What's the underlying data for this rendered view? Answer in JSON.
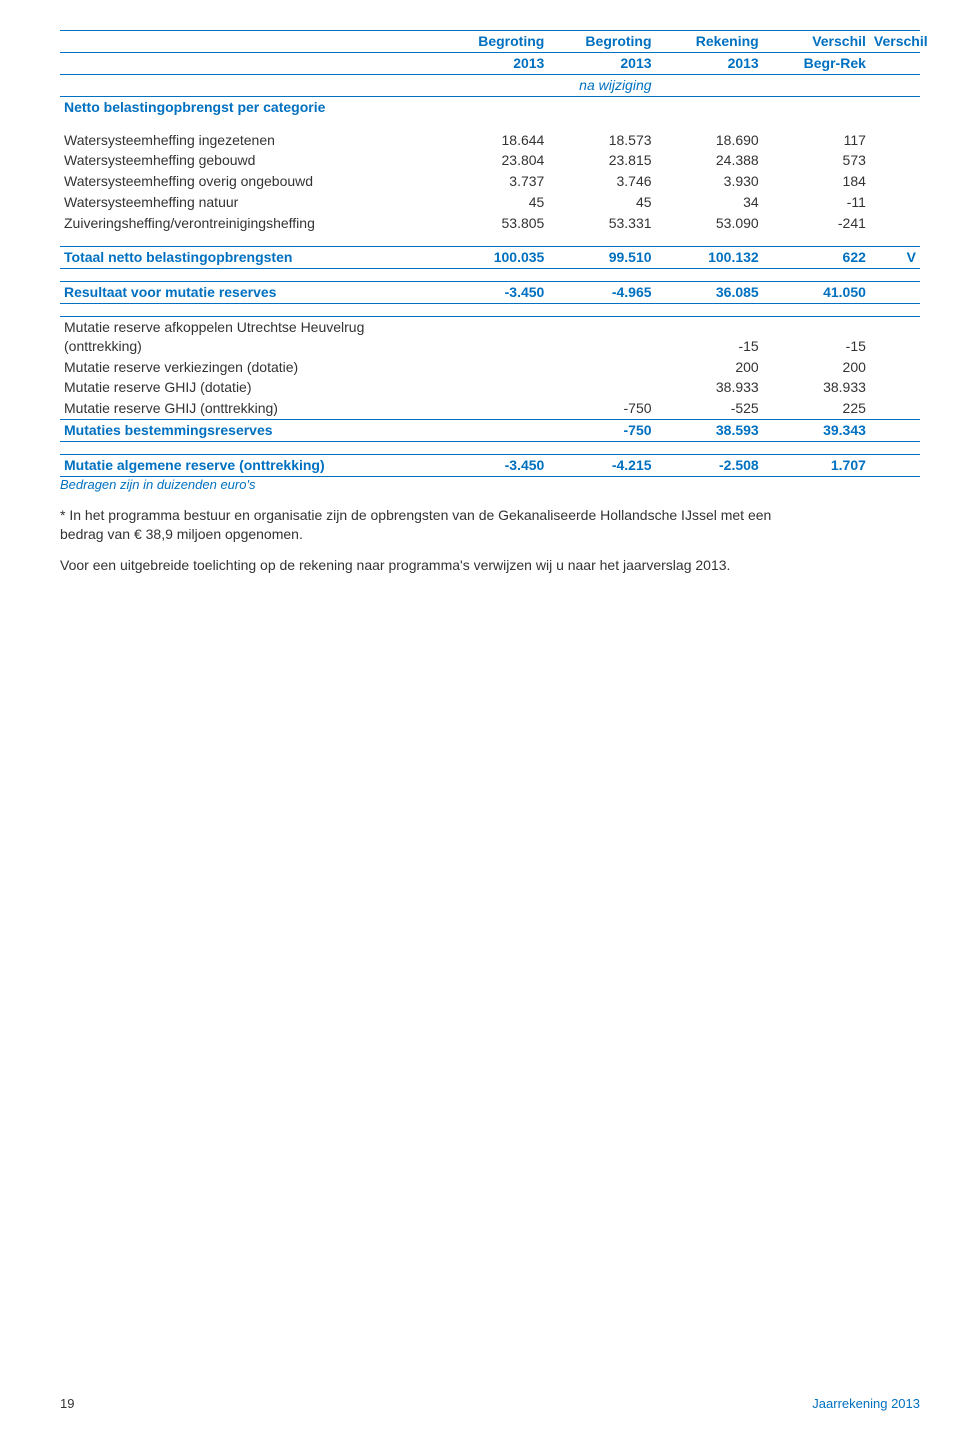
{
  "colors": {
    "accent": "#0070c0",
    "text": "#333333",
    "line": "#0070c0",
    "background": "#ffffff"
  },
  "typography": {
    "font_family": "Arial",
    "base_size_pt": 10.5,
    "bold_weight": 700
  },
  "header": {
    "row1": [
      "",
      "Begroting",
      "Begroting",
      "Rekening",
      "Verschil",
      "Verschil"
    ],
    "row2": [
      "",
      "2013",
      "2013",
      "2013",
      "Begr-Rek",
      ""
    ],
    "row3_note": "na wijziging"
  },
  "section1": {
    "title": "Netto belastingopbrengst per categorie",
    "rows": [
      {
        "label": "Watersysteemheffing ingezetenen",
        "c1": "18.644",
        "c2": "18.573",
        "c3": "18.690",
        "c4": "117"
      },
      {
        "label": "Watersysteemheffing gebouwd",
        "c1": "23.804",
        "c2": "23.815",
        "c3": "24.388",
        "c4": "573"
      },
      {
        "label": "Watersysteemheffing overig ongebouwd",
        "c1": "3.737",
        "c2": "3.746",
        "c3": "3.930",
        "c4": "184"
      },
      {
        "label": "Watersysteemheffing natuur",
        "c1": "45",
        "c2": "45",
        "c3": "34",
        "c4": "-11"
      },
      {
        "label": "Zuiveringsheffing/verontreinigingsheffing",
        "c1": "53.805",
        "c2": "53.331",
        "c3": "53.090",
        "c4": "-241"
      }
    ]
  },
  "total1": {
    "label": "Totaal netto belastingopbrengsten",
    "c1": "100.035",
    "c2": "99.510",
    "c3": "100.132",
    "c4": "622",
    "c5": "V"
  },
  "result_before": {
    "label": "Resultaat voor mutatie reserves",
    "c1": "-3.450",
    "c2": "-4.965",
    "c3": "36.085",
    "c4": "41.050"
  },
  "mutations": {
    "rows": [
      {
        "label": "Mutatie reserve afkoppelen Utrechtse Heuvelrug (onttrekking)",
        "c1": "",
        "c2": "",
        "c3": "-15",
        "c4": "-15"
      },
      {
        "label": "Mutatie reserve verkiezingen (dotatie)",
        "c1": "",
        "c2": "",
        "c3": "200",
        "c4": "200"
      },
      {
        "label": "Mutatie reserve GHIJ (dotatie)",
        "c1": "",
        "c2": "",
        "c3": "38.933",
        "c4": "38.933"
      },
      {
        "label": "Mutatie reserve GHIJ (onttrekking)",
        "c1": "",
        "c2": "-750",
        "c3": "-525",
        "c4": "225"
      }
    ],
    "totals": {
      "label": "Mutaties bestemmingsreserves",
      "c1": "",
      "c2": "-750",
      "c3": "38.593",
      "c4": "39.343"
    }
  },
  "general_reserve": {
    "label": "Mutatie algemene reserve (onttrekking)",
    "c1": "-3.450",
    "c2": "-4.215",
    "c3": "-2.508",
    "c4": "1.707"
  },
  "footnote": "Bedragen zijn in duizenden euro's",
  "notes": [
    "* In het programma bestuur en organisatie zijn de opbrengsten van de Gekanaliseerde Hollandsche IJssel met een bedrag van € 38,9 miljoen opgenomen.",
    "Voor een uitgebreide toelichting op de rekening naar programma's verwijzen wij u naar het jaarverslag 2013."
  ],
  "footer": {
    "page": "19",
    "doc": "Jaarrekening 2013"
  }
}
